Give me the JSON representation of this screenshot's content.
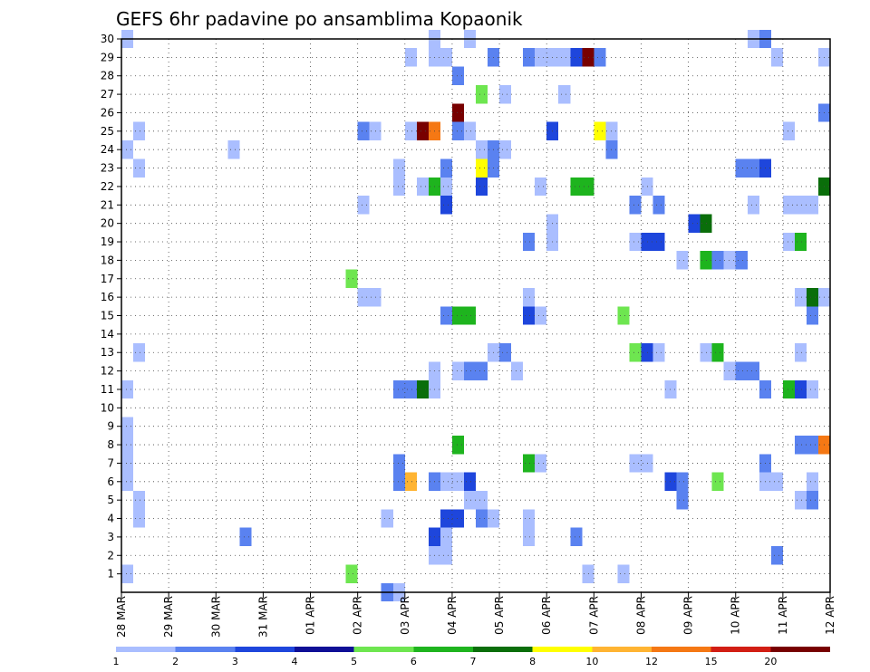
{
  "chart_data": {
    "type": "heatmap",
    "title": "GEFS 6hr padavine po ansamblima Kopaonik",
    "xlabel": "",
    "ylabel": "",
    "x_ticks": [
      "28 MAR",
      "29 MAR",
      "30 MAR",
      "31 MAR",
      "01 APR",
      "02 APR",
      "03 APR",
      "04 APR",
      "05 APR",
      "06 APR",
      "07 APR",
      "08 APR",
      "09 APR",
      "10 APR",
      "11 APR",
      "12 APR"
    ],
    "x_unit": "6-hour steps from 28 MAR 00Z",
    "x_range": [
      0,
      60
    ],
    "y_ticks": [
      1,
      2,
      3,
      4,
      5,
      6,
      7,
      8,
      9,
      10,
      11,
      12,
      13,
      14,
      15,
      16,
      17,
      18,
      19,
      20,
      21,
      22,
      23,
      24,
      25,
      26,
      27,
      28,
      29,
      30
    ],
    "y_range": [
      0,
      30
    ],
    "grid": true,
    "legend": {
      "position": "bottom",
      "labels": [
        "1",
        "2",
        "3",
        "4",
        "5",
        "6",
        "7",
        "8",
        "10",
        "12",
        "15",
        "20"
      ],
      "colors": [
        "#aabeff",
        "#5a82f0",
        "#1e46dc",
        "#0f0f96",
        "#6ee650",
        "#1eb41e",
        "#0a6e0a",
        "#ffff00",
        "#ffb432",
        "#f57814",
        "#d21e14",
        "#780000"
      ]
    },
    "cells": [
      [
        30,
        0,
        1
      ],
      [
        30,
        26,
        1
      ],
      [
        30,
        29,
        1
      ],
      [
        30,
        53,
        1
      ],
      [
        30,
        54,
        2
      ],
      [
        29,
        24,
        1
      ],
      [
        29,
        26,
        1
      ],
      [
        29,
        27,
        1
      ],
      [
        29,
        31,
        2
      ],
      [
        29,
        34,
        2
      ],
      [
        29,
        35,
        1
      ],
      [
        29,
        36,
        1
      ],
      [
        29,
        37,
        1
      ],
      [
        29,
        38,
        3
      ],
      [
        29,
        39,
        12
      ],
      [
        29,
        40,
        2
      ],
      [
        29,
        55,
        1
      ],
      [
        29,
        59,
        1
      ],
      [
        28,
        28,
        2
      ],
      [
        27,
        30,
        5
      ],
      [
        27,
        32,
        1
      ],
      [
        27,
        37,
        1
      ],
      [
        26,
        28,
        12
      ],
      [
        26,
        59,
        2
      ],
      [
        25,
        1,
        1
      ],
      [
        25,
        20,
        2
      ],
      [
        25,
        21,
        1
      ],
      [
        25,
        24,
        1
      ],
      [
        25,
        25,
        12
      ],
      [
        25,
        26,
        10
      ],
      [
        25,
        28,
        2
      ],
      [
        25,
        29,
        1
      ],
      [
        25,
        36,
        3
      ],
      [
        25,
        40,
        8
      ],
      [
        25,
        41,
        1
      ],
      [
        25,
        56,
        1
      ],
      [
        24,
        0,
        1
      ],
      [
        24,
        9,
        1
      ],
      [
        24,
        30,
        1
      ],
      [
        24,
        31,
        2
      ],
      [
        24,
        32,
        1
      ],
      [
        24,
        41,
        2
      ],
      [
        23,
        1,
        1
      ],
      [
        23,
        23,
        1
      ],
      [
        23,
        27,
        2
      ],
      [
        23,
        30,
        8
      ],
      [
        23,
        31,
        2
      ],
      [
        23,
        52,
        2
      ],
      [
        23,
        53,
        2
      ],
      [
        23,
        54,
        3
      ],
      [
        22,
        23,
        1
      ],
      [
        22,
        25,
        1
      ],
      [
        22,
        26,
        6
      ],
      [
        22,
        27,
        1
      ],
      [
        22,
        30,
        3
      ],
      [
        22,
        35,
        1
      ],
      [
        22,
        38,
        6
      ],
      [
        22,
        39,
        6
      ],
      [
        22,
        44,
        1
      ],
      [
        22,
        59,
        7
      ],
      [
        21,
        20,
        1
      ],
      [
        21,
        27,
        3
      ],
      [
        21,
        43,
        2
      ],
      [
        21,
        45,
        2
      ],
      [
        21,
        53,
        1
      ],
      [
        21,
        56,
        1
      ],
      [
        21,
        57,
        1
      ],
      [
        21,
        58,
        1
      ],
      [
        20,
        36,
        1
      ],
      [
        20,
        48,
        3
      ],
      [
        20,
        49,
        7
      ],
      [
        19,
        34,
        2
      ],
      [
        19,
        36,
        1
      ],
      [
        19,
        43,
        1
      ],
      [
        19,
        44,
        3
      ],
      [
        19,
        45,
        3
      ],
      [
        19,
        56,
        1
      ],
      [
        19,
        57,
        6
      ],
      [
        18,
        47,
        1
      ],
      [
        18,
        49,
        6
      ],
      [
        18,
        50,
        2
      ],
      [
        18,
        51,
        1
      ],
      [
        18,
        52,
        2
      ],
      [
        17,
        19,
        5
      ],
      [
        16,
        20,
        1
      ],
      [
        16,
        21,
        1
      ],
      [
        16,
        34,
        1
      ],
      [
        16,
        57,
        1
      ],
      [
        16,
        58,
        7
      ],
      [
        16,
        59,
        1
      ],
      [
        15,
        27,
        2
      ],
      [
        15,
        28,
        6
      ],
      [
        15,
        29,
        6
      ],
      [
        15,
        34,
        3
      ],
      [
        15,
        35,
        1
      ],
      [
        15,
        42,
        5
      ],
      [
        15,
        58,
        2
      ],
      [
        13,
        1,
        1
      ],
      [
        13,
        31,
        1
      ],
      [
        13,
        32,
        2
      ],
      [
        13,
        43,
        5
      ],
      [
        13,
        44,
        3
      ],
      [
        13,
        45,
        1
      ],
      [
        13,
        49,
        1
      ],
      [
        13,
        50,
        6
      ],
      [
        13,
        57,
        1
      ],
      [
        12,
        26,
        1
      ],
      [
        12,
        28,
        1
      ],
      [
        12,
        29,
        2
      ],
      [
        12,
        30,
        2
      ],
      [
        12,
        33,
        1
      ],
      [
        12,
        51,
        1
      ],
      [
        12,
        52,
        2
      ],
      [
        12,
        53,
        2
      ],
      [
        11,
        0,
        1
      ],
      [
        11,
        23,
        2
      ],
      [
        11,
        24,
        2
      ],
      [
        11,
        25,
        7
      ],
      [
        11,
        26,
        1
      ],
      [
        11,
        46,
        1
      ],
      [
        11,
        54,
        2
      ],
      [
        11,
        56,
        6
      ],
      [
        11,
        57,
        3
      ],
      [
        11,
        58,
        1
      ],
      [
        9,
        0,
        1
      ],
      [
        8,
        0,
        1
      ],
      [
        8,
        28,
        6
      ],
      [
        8,
        57,
        2
      ],
      [
        8,
        58,
        2
      ],
      [
        8,
        59,
        10
      ],
      [
        7,
        0,
        1
      ],
      [
        7,
        23,
        2
      ],
      [
        7,
        34,
        6
      ],
      [
        7,
        35,
        1
      ],
      [
        7,
        43,
        1
      ],
      [
        7,
        44,
        1
      ],
      [
        7,
        54,
        2
      ],
      [
        6,
        0,
        1
      ],
      [
        6,
        23,
        2
      ],
      [
        6,
        24,
        9
      ],
      [
        6,
        26,
        2
      ],
      [
        6,
        27,
        1
      ],
      [
        6,
        28,
        1
      ],
      [
        6,
        29,
        3
      ],
      [
        6,
        46,
        3
      ],
      [
        6,
        47,
        2
      ],
      [
        6,
        50,
        5
      ],
      [
        6,
        54,
        1
      ],
      [
        6,
        55,
        1
      ],
      [
        6,
        58,
        1
      ],
      [
        5,
        1,
        1
      ],
      [
        5,
        29,
        1
      ],
      [
        5,
        30,
        1
      ],
      [
        5,
        47,
        2
      ],
      [
        5,
        57,
        1
      ],
      [
        5,
        58,
        2
      ],
      [
        4,
        1,
        1
      ],
      [
        4,
        22,
        1
      ],
      [
        4,
        27,
        3
      ],
      [
        4,
        28,
        3
      ],
      [
        4,
        30,
        2
      ],
      [
        4,
        31,
        1
      ],
      [
        4,
        34,
        1
      ],
      [
        3,
        10,
        2
      ],
      [
        3,
        26,
        3
      ],
      [
        3,
        27,
        1
      ],
      [
        3,
        34,
        1
      ],
      [
        3,
        38,
        2
      ],
      [
        2,
        26,
        1
      ],
      [
        2,
        27,
        1
      ],
      [
        2,
        55,
        2
      ],
      [
        1,
        0,
        1
      ],
      [
        1,
        19,
        5
      ],
      [
        1,
        39,
        1
      ],
      [
        1,
        42,
        1
      ],
      [
        0,
        22,
        2
      ],
      [
        0,
        23,
        1
      ]
    ]
  }
}
